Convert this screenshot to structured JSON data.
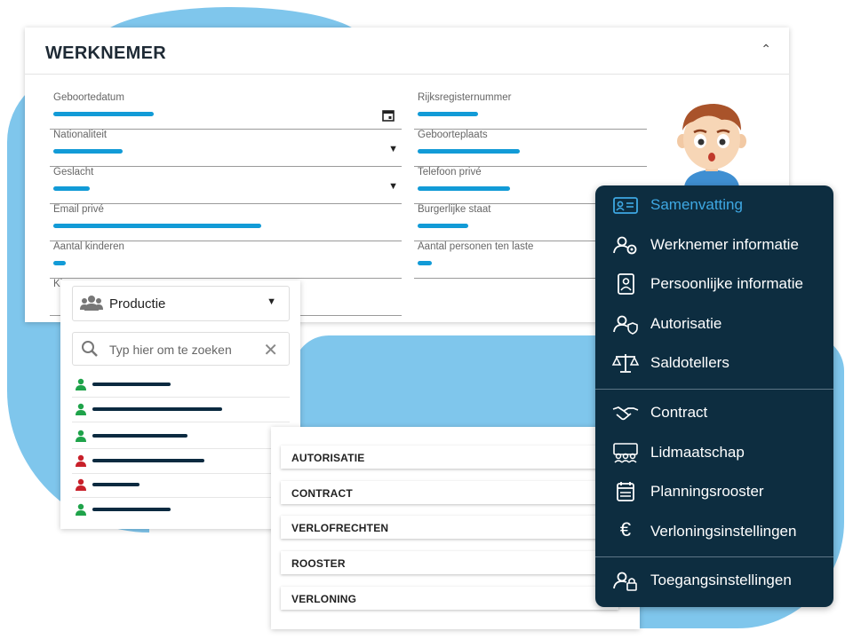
{
  "werknemer": {
    "title": "WERKNEMER",
    "fields_left": [
      {
        "label": "Geboortedatum",
        "icon": "calendar-icon"
      },
      {
        "label": "Nationaliteit",
        "icon": "caret-down-icon"
      },
      {
        "label": "Geslacht",
        "icon": "caret-down-icon"
      },
      {
        "label": "Email privé"
      },
      {
        "label": "Aantal kinderen"
      }
    ],
    "fields_right": [
      {
        "label": "Rijksregisternummer"
      },
      {
        "label": "Geboorteplaats"
      },
      {
        "label": "Telefoon privé"
      },
      {
        "label": "Burgerlijke staat"
      },
      {
        "label": "Aantal personen ten laste"
      }
    ],
    "partial_label": "Ki"
  },
  "productie": {
    "dropdown_label": "Productie",
    "search_placeholder": "Typ hier om te zoeken",
    "people": [
      {
        "status": "green"
      },
      {
        "status": "green"
      },
      {
        "status": "green"
      },
      {
        "status": "red"
      },
      {
        "status": "red"
      },
      {
        "status": "green"
      }
    ]
  },
  "tabs": [
    "AUTORISATIE",
    "CONTRACT",
    "VERLOFRECHTEN",
    "ROOSTER",
    "VERLONING"
  ],
  "menu": {
    "items": [
      {
        "label": "Samenvatting",
        "icon": "id-card-icon",
        "active": true
      },
      {
        "label": "Werknemer informatie",
        "icon": "user-gear-icon"
      },
      {
        "label": "Persoonlijke informatie",
        "icon": "contact-card-icon"
      },
      {
        "label": "Autorisatie",
        "icon": "user-shield-icon"
      },
      {
        "label": "Saldotellers",
        "icon": "scale-icon"
      },
      {
        "label": "Contract",
        "icon": "handshake-icon"
      },
      {
        "label": "Lidmaatschap",
        "icon": "group-icon"
      },
      {
        "label": "Planningsrooster",
        "icon": "calendar-icon"
      },
      {
        "label": "Verloningsinstellingen",
        "icon": "euro-icon"
      },
      {
        "label": "Toegangsinstellingen",
        "icon": "user-lock-icon"
      }
    ]
  },
  "colors": {
    "accent": "#129bd7",
    "menu_bg": "#0d2d40",
    "menu_active": "#3ea8e3",
    "blob": "#7fc6ec",
    "status_green": "#1fa34a",
    "status_red": "#c8202a"
  }
}
